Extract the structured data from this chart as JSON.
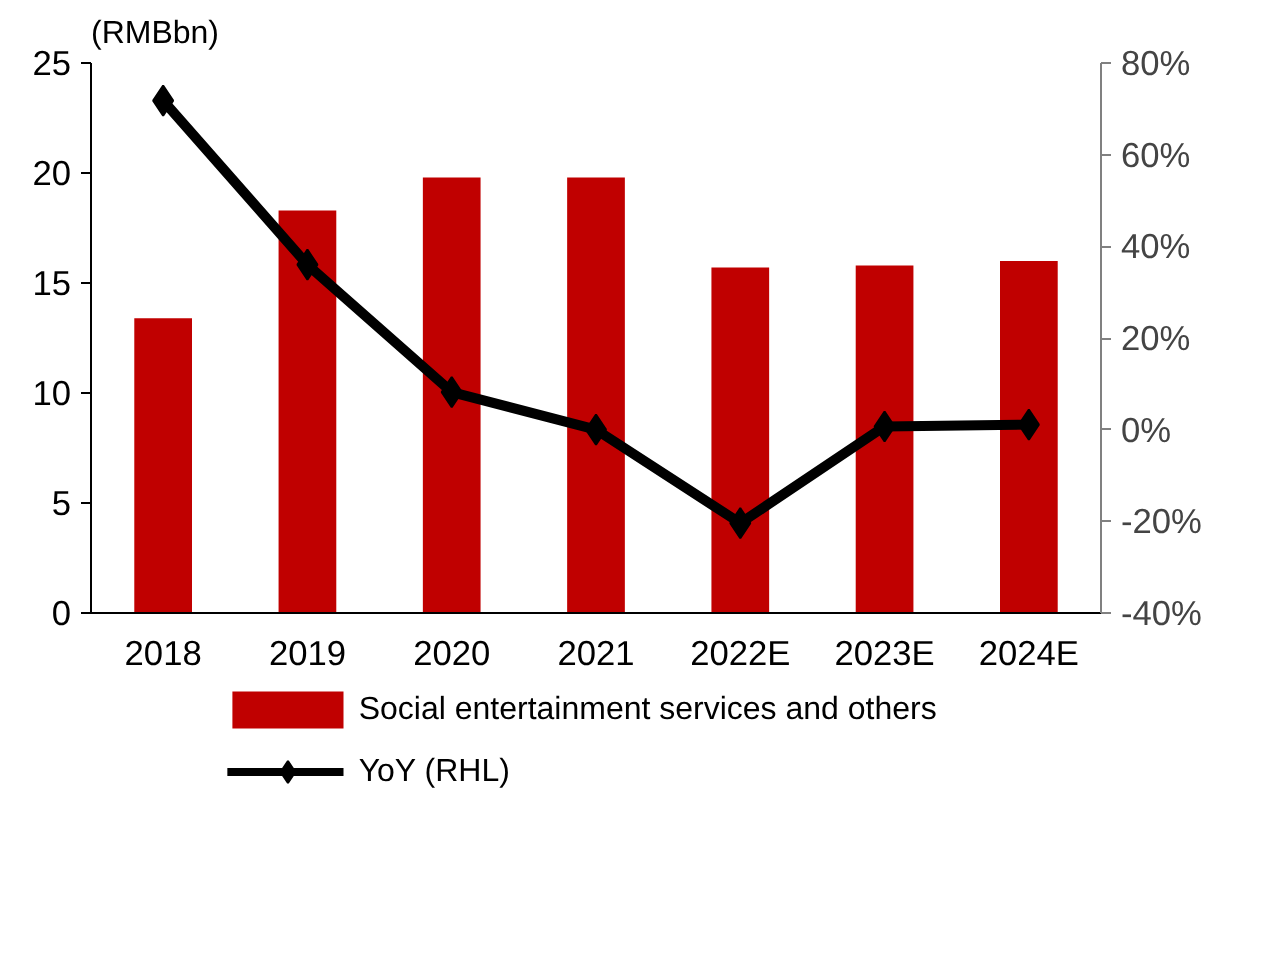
{
  "chart_data": {
    "type": "bar",
    "ylabel": "(RMBbn)",
    "categories": [
      "2018",
      "2019",
      "2020",
      "2021",
      "2022E",
      "2023E",
      "2024E"
    ],
    "series": [
      {
        "name": "Social entertainment services and others",
        "color": "#c00000",
        "values": [
          13.4,
          18.3,
          19.8,
          19.8,
          15.7,
          15.8,
          16.0
        ]
      },
      {
        "name": "YoY (RHL)",
        "type": "line",
        "axis": "y2",
        "color": "#000000",
        "marker": "diamond",
        "values": [
          71.8,
          36.0,
          8.2,
          0.0,
          -20.4,
          0.7,
          1.1
        ]
      }
    ],
    "ylim": [
      0,
      25
    ],
    "yticks": [
      0,
      5,
      10,
      15,
      20,
      25
    ],
    "y2lim": [
      -40,
      80
    ],
    "y2ticks": [
      {
        "value": -40,
        "label": "-40%"
      },
      {
        "value": -20,
        "label": "-20%"
      },
      {
        "value": 0,
        "label": "0%"
      },
      {
        "value": 20,
        "label": "20%"
      },
      {
        "value": 40,
        "label": "40%"
      },
      {
        "value": 60,
        "label": "60%"
      },
      {
        "value": 80,
        "label": "80%"
      }
    ],
    "grid": false,
    "legend": "bottom"
  }
}
